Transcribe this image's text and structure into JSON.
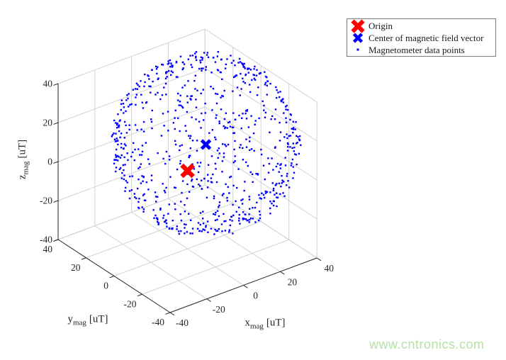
{
  "watermark": {
    "text": "www.cntronics.com",
    "color": "#b6e2a4"
  },
  "style": {
    "background": "#ffffff",
    "axis_color": "#262626",
    "grid_color": "#d2d2d2",
    "tick_label_color": "#262626"
  },
  "chart_data": {
    "type": "scatter",
    "projection": "3d",
    "title": "",
    "view": {
      "azimuth": -37.5,
      "elevation": 30,
      "grid": true,
      "box": false
    },
    "axes": {
      "x": {
        "label": {
          "base": "x",
          "sub": "mag",
          "unit": "[uT]"
        },
        "ticks": [
          -40,
          -20,
          0,
          20,
          40
        ],
        "tick_labels": [
          "-40",
          "-20",
          "0",
          "20",
          "40"
        ],
        "lim": [
          -40,
          40
        ]
      },
      "y": {
        "label": {
          "base": "y",
          "sub": "mag",
          "unit": "[uT]"
        },
        "ticks": [
          -40,
          -20,
          0,
          20,
          40
        ],
        "tick_labels": [
          "-40",
          "-20",
          "0",
          "20",
          "40"
        ],
        "lim": [
          -40,
          40
        ]
      },
      "z": {
        "label": {
          "base": "z",
          "sub": "mag",
          "unit": "[uT]"
        },
        "ticks": [
          -40,
          -20,
          0,
          20,
          40
        ],
        "tick_labels": [
          "-40",
          "-20",
          "0",
          "20",
          "40"
        ],
        "lim": [
          -40,
          40
        ]
      }
    },
    "series": [
      {
        "name": "Origin",
        "marker": "x",
        "color": "#ff0000",
        "marker_size": 8,
        "marker_stroke": 6.5,
        "points": [
          [
            0,
            0,
            0
          ]
        ]
      },
      {
        "name": "Center of magnetic field vector",
        "marker": "x",
        "color": "#0000ff",
        "marker_size": 6,
        "marker_stroke": 4.8,
        "points": [
          [
            10,
            0,
            10
          ]
        ]
      },
      {
        "name": "Magnetometer data points",
        "marker": "point",
        "color": "#0000ff",
        "marker_size": 2.4,
        "distribution": {
          "shape": "sphere-surface",
          "center": [
            10,
            0,
            10
          ],
          "radius": 40,
          "count": 800,
          "noise": 1.5,
          "seed": 11
        }
      }
    ],
    "legend": {
      "position": "northeast",
      "items": [
        "Origin",
        "Center of magnetic field vector",
        "Magnetometer data points"
      ]
    }
  }
}
